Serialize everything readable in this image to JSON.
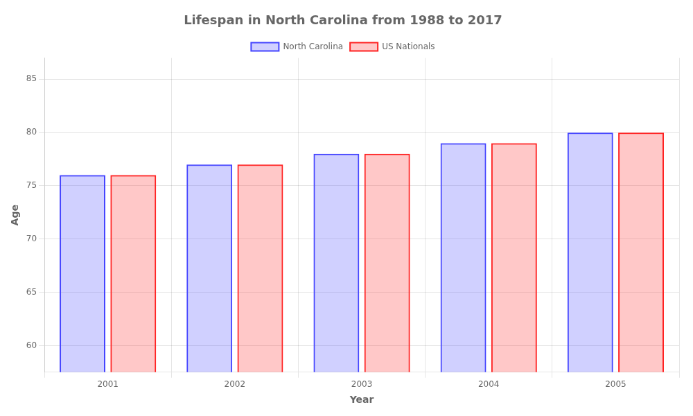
{
  "chart_data": {
    "type": "bar",
    "title": "Lifespan in North Carolina from 1988 to 2017",
    "xlabel": "Year",
    "ylabel": "Age",
    "categories": [
      "2001",
      "2002",
      "2003",
      "2004",
      "2005"
    ],
    "series": [
      {
        "name": "North Carolina",
        "color": "#4444ff",
        "values": [
          76,
          77,
          78,
          79,
          80
        ]
      },
      {
        "name": "US Nationals",
        "color": "#ff2222",
        "values": [
          76,
          77,
          78,
          79,
          80
        ]
      }
    ],
    "ylim": [
      57.5,
      87
    ],
    "yticks": [
      60,
      65,
      70,
      75,
      80,
      85
    ],
    "grid": true,
    "legend": "top"
  }
}
